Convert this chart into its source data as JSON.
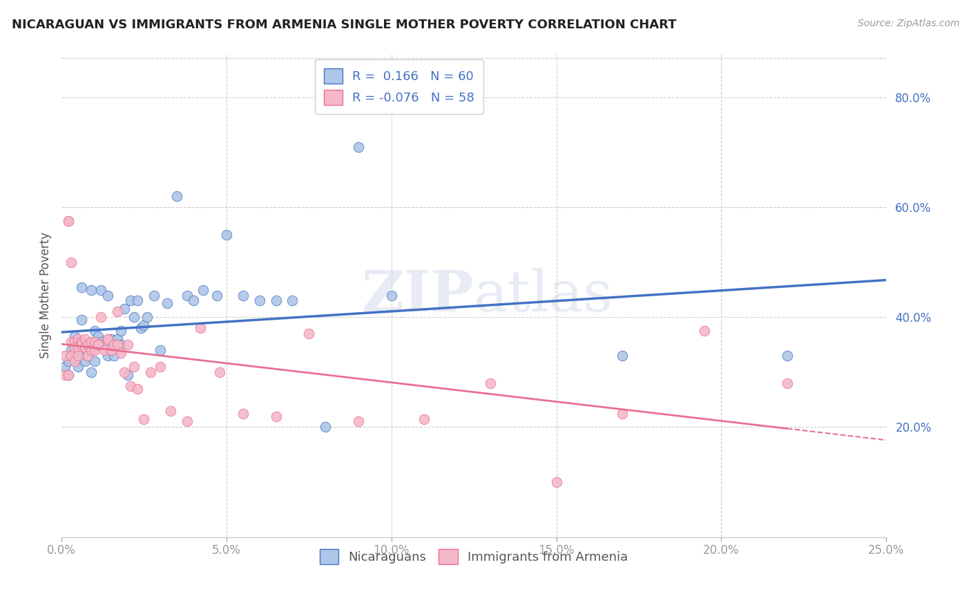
{
  "title": "NICARAGUAN VS IMMIGRANTS FROM ARMENIA SINGLE MOTHER POVERTY CORRELATION CHART",
  "source": "Source: ZipAtlas.com",
  "ylabel": "Single Mother Poverty",
  "legend_label1": "Nicaraguans",
  "legend_label2": "Immigrants from Armenia",
  "r1": 0.166,
  "n1": 60,
  "r2": -0.076,
  "n2": 58,
  "color_blue": "#aec6e8",
  "color_pink": "#f4b8c8",
  "line_blue": "#4472c4",
  "line_pink": "#e87090",
  "blue_scatter_x": [
    0.001,
    0.002,
    0.002,
    0.003,
    0.003,
    0.004,
    0.004,
    0.004,
    0.005,
    0.005,
    0.005,
    0.006,
    0.006,
    0.006,
    0.007,
    0.007,
    0.008,
    0.008,
    0.009,
    0.009,
    0.01,
    0.01,
    0.011,
    0.012,
    0.012,
    0.013,
    0.014,
    0.014,
    0.015,
    0.016,
    0.016,
    0.017,
    0.018,
    0.018,
    0.019,
    0.02,
    0.021,
    0.022,
    0.023,
    0.024,
    0.025,
    0.026,
    0.028,
    0.03,
    0.032,
    0.035,
    0.038,
    0.04,
    0.043,
    0.047,
    0.05,
    0.055,
    0.06,
    0.065,
    0.07,
    0.08,
    0.09,
    0.1,
    0.17,
    0.22
  ],
  "blue_scatter_y": [
    0.31,
    0.295,
    0.32,
    0.34,
    0.33,
    0.335,
    0.355,
    0.365,
    0.31,
    0.325,
    0.345,
    0.34,
    0.455,
    0.395,
    0.34,
    0.32,
    0.34,
    0.33,
    0.45,
    0.3,
    0.375,
    0.32,
    0.365,
    0.45,
    0.355,
    0.35,
    0.44,
    0.33,
    0.36,
    0.33,
    0.35,
    0.36,
    0.375,
    0.35,
    0.415,
    0.295,
    0.43,
    0.4,
    0.43,
    0.38,
    0.385,
    0.4,
    0.44,
    0.34,
    0.425,
    0.62,
    0.44,
    0.43,
    0.45,
    0.44,
    0.55,
    0.44,
    0.43,
    0.43,
    0.43,
    0.2,
    0.71,
    0.44,
    0.33,
    0.33
  ],
  "pink_scatter_x": [
    0.001,
    0.001,
    0.002,
    0.002,
    0.002,
    0.003,
    0.003,
    0.003,
    0.004,
    0.004,
    0.004,
    0.005,
    0.005,
    0.005,
    0.006,
    0.006,
    0.006,
    0.007,
    0.007,
    0.008,
    0.008,
    0.009,
    0.009,
    0.01,
    0.01,
    0.011,
    0.011,
    0.012,
    0.013,
    0.014,
    0.014,
    0.015,
    0.016,
    0.017,
    0.017,
    0.018,
    0.019,
    0.02,
    0.021,
    0.022,
    0.023,
    0.025,
    0.027,
    0.03,
    0.033,
    0.038,
    0.042,
    0.048,
    0.055,
    0.065,
    0.075,
    0.09,
    0.11,
    0.13,
    0.15,
    0.17,
    0.195,
    0.22
  ],
  "pink_scatter_y": [
    0.33,
    0.295,
    0.575,
    0.575,
    0.295,
    0.355,
    0.33,
    0.5,
    0.355,
    0.345,
    0.32,
    0.36,
    0.345,
    0.33,
    0.355,
    0.355,
    0.35,
    0.36,
    0.345,
    0.35,
    0.33,
    0.355,
    0.34,
    0.355,
    0.34,
    0.35,
    0.35,
    0.4,
    0.34,
    0.36,
    0.36,
    0.34,
    0.35,
    0.41,
    0.35,
    0.335,
    0.3,
    0.35,
    0.275,
    0.31,
    0.27,
    0.215,
    0.3,
    0.31,
    0.23,
    0.21,
    0.38,
    0.3,
    0.225,
    0.22,
    0.37,
    0.21,
    0.215,
    0.28,
    0.1,
    0.225,
    0.375,
    0.28
  ],
  "xlim": [
    0.0,
    0.25
  ],
  "ylim": [
    0.0,
    0.88
  ],
  "xticks": [
    0.0,
    0.05,
    0.1,
    0.15,
    0.2,
    0.25
  ],
  "yticks": [
    0.2,
    0.4,
    0.6,
    0.8
  ],
  "watermark_zip": "ZIP",
  "watermark_atlas": "atlas",
  "title_color": "#222222",
  "axis_label_color": "#4472c4",
  "grid_color": "#cccccc",
  "title_fontsize": 13,
  "source_fontsize": 10,
  "legend_fontsize": 13,
  "scatter_size": 110
}
